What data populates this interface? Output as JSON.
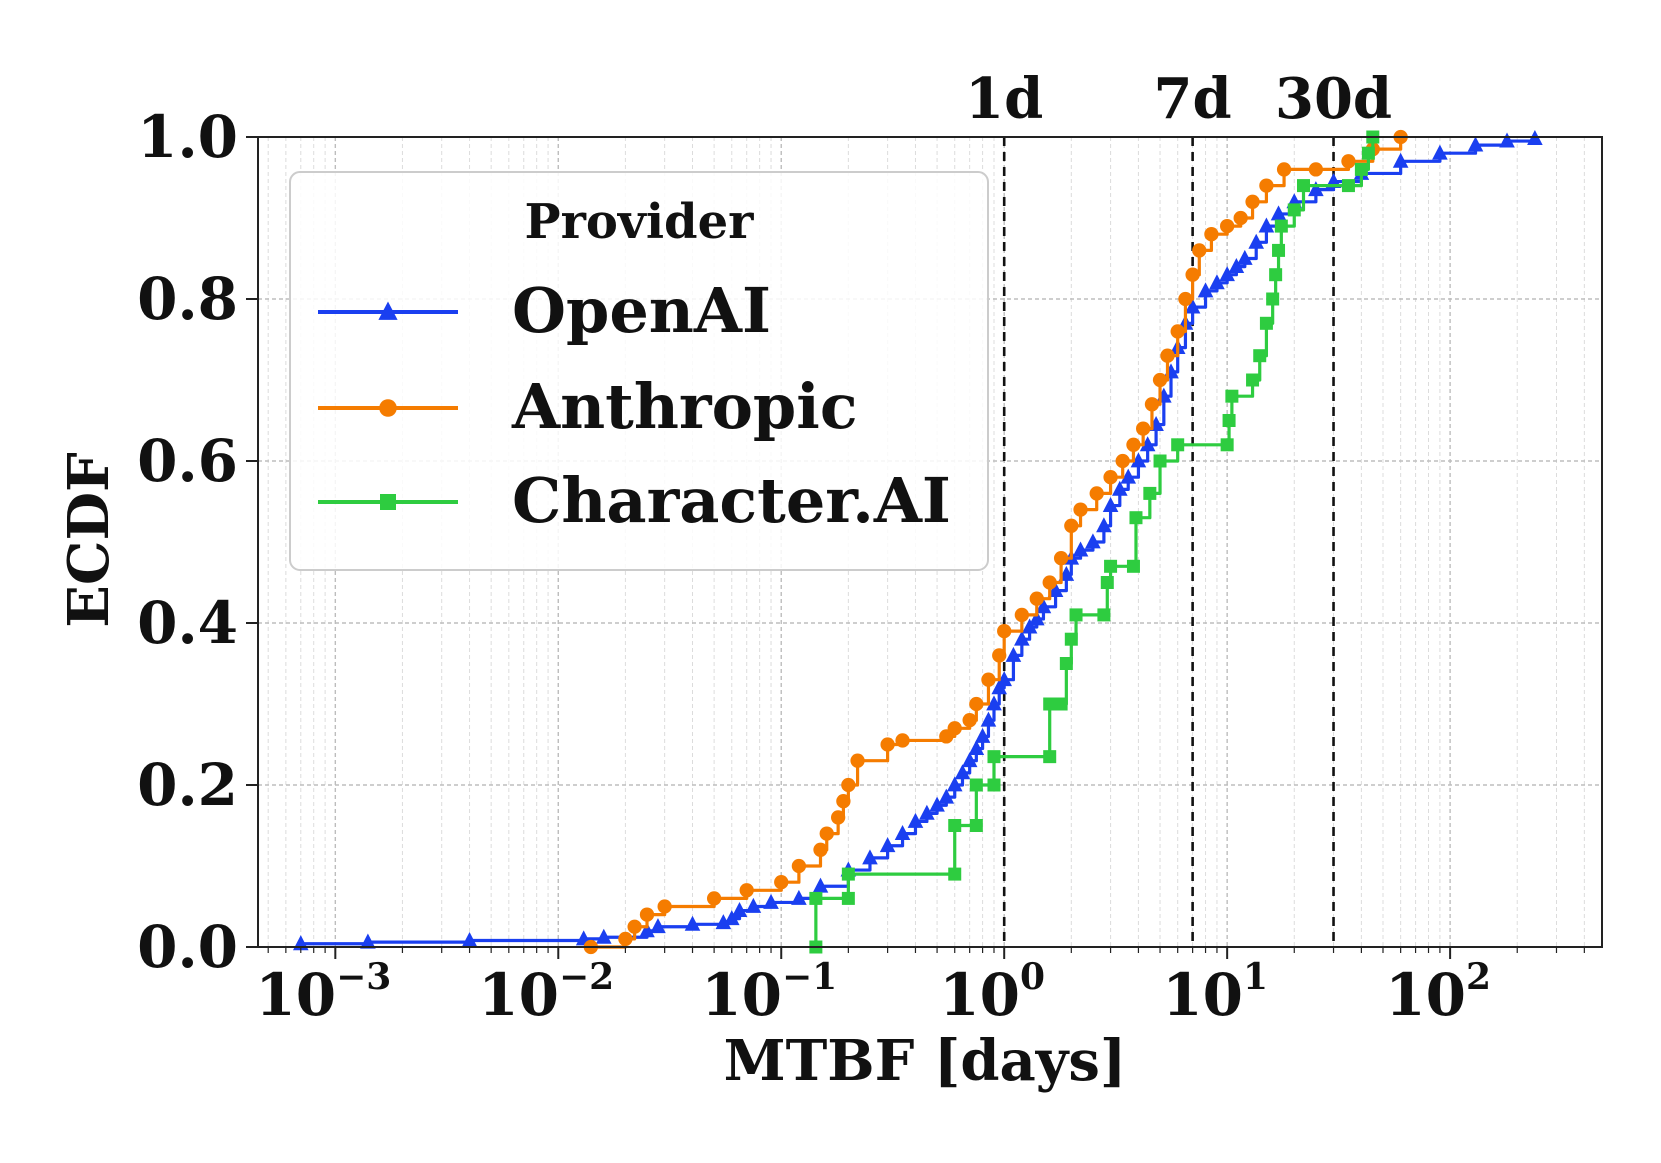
{
  "chart_data": {
    "type": "line",
    "subtype": "ecdf-step",
    "xlabel": "MTBF [days]",
    "ylabel": "ECDF",
    "xscale": "log",
    "xlim": [
      0.00045,
      480
    ],
    "ylim": [
      0.0,
      1.0
    ],
    "grid": true,
    "x_tick_labels": [
      {
        "value": 0.001,
        "base": "10",
        "exp": "−3"
      },
      {
        "value": 0.01,
        "base": "10",
        "exp": "−2"
      },
      {
        "value": 0.1,
        "base": "10",
        "exp": "−1"
      },
      {
        "value": 1,
        "base": "10",
        "exp": "0"
      },
      {
        "value": 10,
        "base": "10",
        "exp": "1"
      },
      {
        "value": 100,
        "base": "10",
        "exp": "2"
      }
    ],
    "y_ticks": [
      0.0,
      0.2,
      0.4,
      0.6,
      0.8,
      1.0
    ],
    "y_tick_labels": [
      "0.0",
      "0.2",
      "0.4",
      "0.6",
      "0.8",
      "1.0"
    ],
    "reference_lines": [
      {
        "x": 1,
        "label": "1d"
      },
      {
        "x": 7,
        "label": "7d"
      },
      {
        "x": 30,
        "label": "30d"
      }
    ],
    "legend": {
      "title": "Provider",
      "position": "upper-left"
    },
    "series": [
      {
        "name": "OpenAI",
        "color": "#1a3ff0",
        "marker": "triangle",
        "points": [
          [
            0.0007,
            0.004
          ],
          [
            0.0014,
            0.006
          ],
          [
            0.004,
            0.008
          ],
          [
            0.013,
            0.01
          ],
          [
            0.016,
            0.012
          ],
          [
            0.025,
            0.02
          ],
          [
            0.028,
            0.025
          ],
          [
            0.04,
            0.028
          ],
          [
            0.055,
            0.03
          ],
          [
            0.06,
            0.035
          ],
          [
            0.065,
            0.045
          ],
          [
            0.075,
            0.05
          ],
          [
            0.09,
            0.055
          ],
          [
            0.12,
            0.06
          ],
          [
            0.15,
            0.075
          ],
          [
            0.2,
            0.095
          ],
          [
            0.25,
            0.11
          ],
          [
            0.3,
            0.125
          ],
          [
            0.35,
            0.14
          ],
          [
            0.4,
            0.155
          ],
          [
            0.45,
            0.165
          ],
          [
            0.5,
            0.175
          ],
          [
            0.55,
            0.185
          ],
          [
            0.6,
            0.2
          ],
          [
            0.65,
            0.215
          ],
          [
            0.7,
            0.23
          ],
          [
            0.75,
            0.245
          ],
          [
            0.8,
            0.26
          ],
          [
            0.85,
            0.28
          ],
          [
            0.9,
            0.3
          ],
          [
            0.95,
            0.32
          ],
          [
            1.0,
            0.33
          ],
          [
            1.1,
            0.36
          ],
          [
            1.2,
            0.38
          ],
          [
            1.3,
            0.395
          ],
          [
            1.4,
            0.405
          ],
          [
            1.5,
            0.42
          ],
          [
            1.7,
            0.44
          ],
          [
            1.9,
            0.46
          ],
          [
            2.0,
            0.48
          ],
          [
            2.2,
            0.49
          ],
          [
            2.5,
            0.5
          ],
          [
            2.8,
            0.52
          ],
          [
            3.0,
            0.545
          ],
          [
            3.3,
            0.565
          ],
          [
            3.6,
            0.58
          ],
          [
            4.0,
            0.6
          ],
          [
            4.4,
            0.62
          ],
          [
            4.8,
            0.645
          ],
          [
            5.2,
            0.68
          ],
          [
            5.6,
            0.71
          ],
          [
            6.0,
            0.74
          ],
          [
            6.5,
            0.77
          ],
          [
            7.0,
            0.79
          ],
          [
            8.0,
            0.81
          ],
          [
            9.0,
            0.82
          ],
          [
            10.0,
            0.83
          ],
          [
            11.0,
            0.84
          ],
          [
            12.0,
            0.85
          ],
          [
            13.5,
            0.87
          ],
          [
            15.0,
            0.89
          ],
          [
            17.0,
            0.905
          ],
          [
            20.0,
            0.92
          ],
          [
            25.0,
            0.935
          ],
          [
            30.0,
            0.945
          ],
          [
            40.0,
            0.955
          ],
          [
            60.0,
            0.97
          ],
          [
            90.0,
            0.98
          ],
          [
            130.0,
            0.99
          ],
          [
            180.0,
            0.995
          ],
          [
            240.0,
            0.998
          ]
        ]
      },
      {
        "name": "Anthropic",
        "color": "#f57c00",
        "marker": "circle",
        "points": [
          [
            0.014,
            0.0
          ],
          [
            0.02,
            0.01
          ],
          [
            0.022,
            0.025
          ],
          [
            0.025,
            0.04
          ],
          [
            0.03,
            0.05
          ],
          [
            0.05,
            0.06
          ],
          [
            0.07,
            0.07
          ],
          [
            0.1,
            0.08
          ],
          [
            0.12,
            0.1
          ],
          [
            0.15,
            0.12
          ],
          [
            0.16,
            0.14
          ],
          [
            0.18,
            0.16
          ],
          [
            0.19,
            0.18
          ],
          [
            0.2,
            0.2
          ],
          [
            0.22,
            0.23
          ],
          [
            0.3,
            0.25
          ],
          [
            0.35,
            0.255
          ],
          [
            0.55,
            0.26
          ],
          [
            0.6,
            0.27
          ],
          [
            0.7,
            0.28
          ],
          [
            0.75,
            0.3
          ],
          [
            0.85,
            0.33
          ],
          [
            0.95,
            0.36
          ],
          [
            1.0,
            0.39
          ],
          [
            1.2,
            0.41
          ],
          [
            1.4,
            0.43
          ],
          [
            1.6,
            0.45
          ],
          [
            1.8,
            0.48
          ],
          [
            2.0,
            0.52
          ],
          [
            2.2,
            0.54
          ],
          [
            2.6,
            0.56
          ],
          [
            3.0,
            0.58
          ],
          [
            3.4,
            0.6
          ],
          [
            3.8,
            0.62
          ],
          [
            4.2,
            0.64
          ],
          [
            4.6,
            0.67
          ],
          [
            5.0,
            0.7
          ],
          [
            5.4,
            0.73
          ],
          [
            6.0,
            0.76
          ],
          [
            6.5,
            0.8
          ],
          [
            7.0,
            0.83
          ],
          [
            7.5,
            0.86
          ],
          [
            8.5,
            0.88
          ],
          [
            10.0,
            0.89
          ],
          [
            11.5,
            0.9
          ],
          [
            13.0,
            0.92
          ],
          [
            15.0,
            0.94
          ],
          [
            18.0,
            0.96
          ],
          [
            25.0,
            0.96
          ],
          [
            35.0,
            0.97
          ],
          [
            45.0,
            0.985
          ],
          [
            60.0,
            1.0
          ]
        ]
      },
      {
        "name": "Character.AI",
        "color": "#2ecc40",
        "marker": "square",
        "points": [
          [
            0.143,
            0.0
          ],
          [
            0.143,
            0.06
          ],
          [
            0.2,
            0.06
          ],
          [
            0.2,
            0.09
          ],
          [
            0.6,
            0.09
          ],
          [
            0.6,
            0.15
          ],
          [
            0.75,
            0.15
          ],
          [
            0.75,
            0.2
          ],
          [
            0.9,
            0.2
          ],
          [
            0.9,
            0.235
          ],
          [
            1.6,
            0.235
          ],
          [
            1.6,
            0.3
          ],
          [
            1.8,
            0.3
          ],
          [
            1.9,
            0.35
          ],
          [
            2.0,
            0.38
          ],
          [
            2.1,
            0.41
          ],
          [
            2.8,
            0.41
          ],
          [
            2.9,
            0.45
          ],
          [
            3.0,
            0.47
          ],
          [
            3.8,
            0.47
          ],
          [
            3.9,
            0.53
          ],
          [
            4.5,
            0.56
          ],
          [
            5.0,
            0.6
          ],
          [
            6.0,
            0.62
          ],
          [
            10.0,
            0.62
          ],
          [
            10.2,
            0.65
          ],
          [
            10.5,
            0.68
          ],
          [
            13.0,
            0.7
          ],
          [
            14.0,
            0.73
          ],
          [
            15.0,
            0.77
          ],
          [
            16.0,
            0.8
          ],
          [
            16.5,
            0.83
          ],
          [
            17.0,
            0.86
          ],
          [
            17.5,
            0.89
          ],
          [
            20.0,
            0.91
          ],
          [
            22.0,
            0.94
          ],
          [
            35.0,
            0.94
          ],
          [
            40.0,
            0.96
          ],
          [
            43.0,
            0.98
          ],
          [
            45.0,
            1.0
          ]
        ]
      }
    ]
  }
}
